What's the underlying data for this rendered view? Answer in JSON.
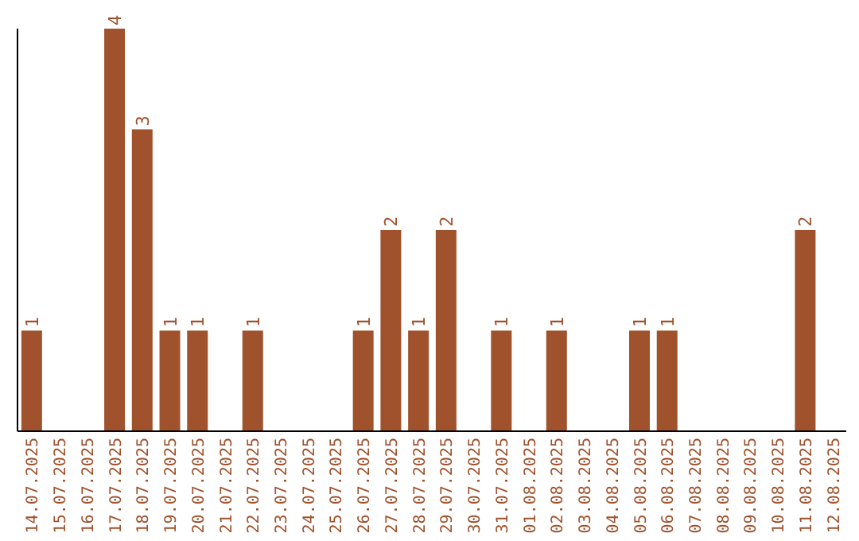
{
  "chart_data": {
    "type": "bar",
    "categories": [
      "14.07.2025",
      "15.07.2025",
      "16.07.2025",
      "17.07.2025",
      "18.07.2025",
      "19.07.2025",
      "20.07.2025",
      "21.07.2025",
      "22.07.2025",
      "23.07.2025",
      "24.07.2025",
      "25.07.2025",
      "26.07.2025",
      "27.07.2025",
      "28.07.2025",
      "29.07.2025",
      "30.07.2025",
      "31.07.2025",
      "01.08.2025",
      "02.08.2025",
      "03.08.2025",
      "04.08.2025",
      "05.08.2025",
      "06.08.2025",
      "07.08.2025",
      "08.08.2025",
      "09.08.2025",
      "10.08.2025",
      "11.08.2025",
      "12.08.2025"
    ],
    "values": [
      1,
      null,
      null,
      4,
      3,
      1,
      1,
      null,
      1,
      null,
      null,
      null,
      1,
      2,
      1,
      2,
      null,
      1,
      null,
      1,
      null,
      null,
      1,
      1,
      null,
      null,
      null,
      null,
      2,
      null
    ],
    "color": "#a0522d",
    "data_labels": true,
    "tick_labels": "x"
  }
}
